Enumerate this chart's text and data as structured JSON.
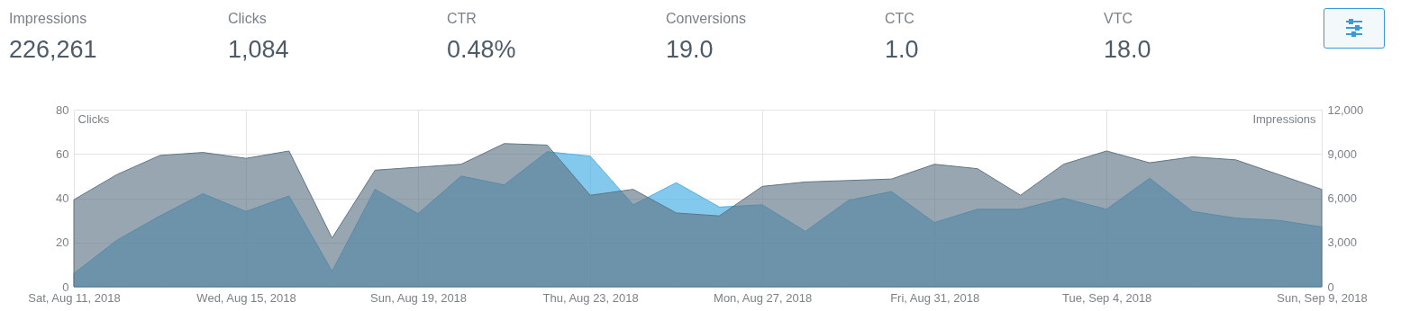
{
  "chart_data": [
    {
      "type": "other",
      "categories": [
        "Impressions",
        "Clicks",
        "CTR",
        "Conversions",
        "CTC",
        "VTC"
      ],
      "value_labels": [
        "226,261",
        "1,084",
        "0.48%",
        "19.0",
        "1.0",
        "18.0"
      ]
    },
    {
      "type": "area",
      "ylabel": "Clicks",
      "y2label": "Impressions",
      "x": [
        "2018-08-11",
        "2018-08-12",
        "2018-08-13",
        "2018-08-14",
        "2018-08-15",
        "2018-08-16",
        "2018-08-17",
        "2018-08-18",
        "2018-08-19",
        "2018-08-20",
        "2018-08-21",
        "2018-08-22",
        "2018-08-23",
        "2018-08-24",
        "2018-08-25",
        "2018-08-26",
        "2018-08-27",
        "2018-08-28",
        "2018-08-29",
        "2018-08-30",
        "2018-08-31",
        "2018-09-01",
        "2018-09-02",
        "2018-09-03",
        "2018-09-04",
        "2018-09-05",
        "2018-09-06",
        "2018-09-07",
        "2018-09-08",
        "2018-09-09"
      ],
      "series": [
        {
          "color": "#4fb0e6",
          "values": [
            6,
            21,
            32,
            42,
            34,
            41,
            7,
            44,
            33,
            50,
            46,
            61,
            59,
            37,
            47,
            36,
            37,
            25,
            39,
            43,
            29,
            35,
            35,
            40,
            35,
            49,
            34,
            31,
            30,
            27
          ]
        },
        {
          "color": "#5f7785",
          "axis": "y2",
          "values": [
            5900,
            7600,
            8900,
            9100,
            8700,
            9200,
            3300,
            7900,
            8100,
            8300,
            9700,
            9600,
            6200,
            6600,
            5000,
            4800,
            6800,
            7100,
            7200,
            7300,
            8300,
            8000,
            6200,
            8300,
            9200,
            8400,
            8800,
            8600,
            7600,
            6600
          ]
        }
      ],
      "xlim": [
        "2018-08-11",
        "2018-09-09"
      ],
      "xticks": [
        {
          "value": "2018-08-11",
          "label": "Sat, Aug 11, 2018"
        },
        {
          "value": "2018-08-15",
          "label": "Wed, Aug 15, 2018"
        },
        {
          "value": "2018-08-19",
          "label": "Sun, Aug 19, 2018"
        },
        {
          "value": "2018-08-23",
          "label": "Thu, Aug 23, 2018"
        },
        {
          "value": "2018-08-27",
          "label": "Mon, Aug 27, 2018"
        },
        {
          "value": "2018-08-31",
          "label": "Fri, Aug 31, 2018"
        },
        {
          "value": "2018-09-04",
          "label": "Tue, Sep 4, 2018"
        },
        {
          "value": "2018-09-09",
          "label": "Sun, Sep 9, 2018"
        }
      ],
      "ylim": [
        0,
        80
      ],
      "yticks": [
        0,
        20,
        40,
        60,
        80
      ],
      "y2lim": [
        0,
        12000
      ],
      "y2ticks": [
        0,
        {
          "value": 3000,
          "label": "3,000"
        },
        {
          "value": 6000,
          "label": "6,000"
        },
        {
          "value": 9000,
          "label": "9,000"
        },
        {
          "value": 12000,
          "label": "12,000"
        }
      ],
      "grid": true
    }
  ]
}
